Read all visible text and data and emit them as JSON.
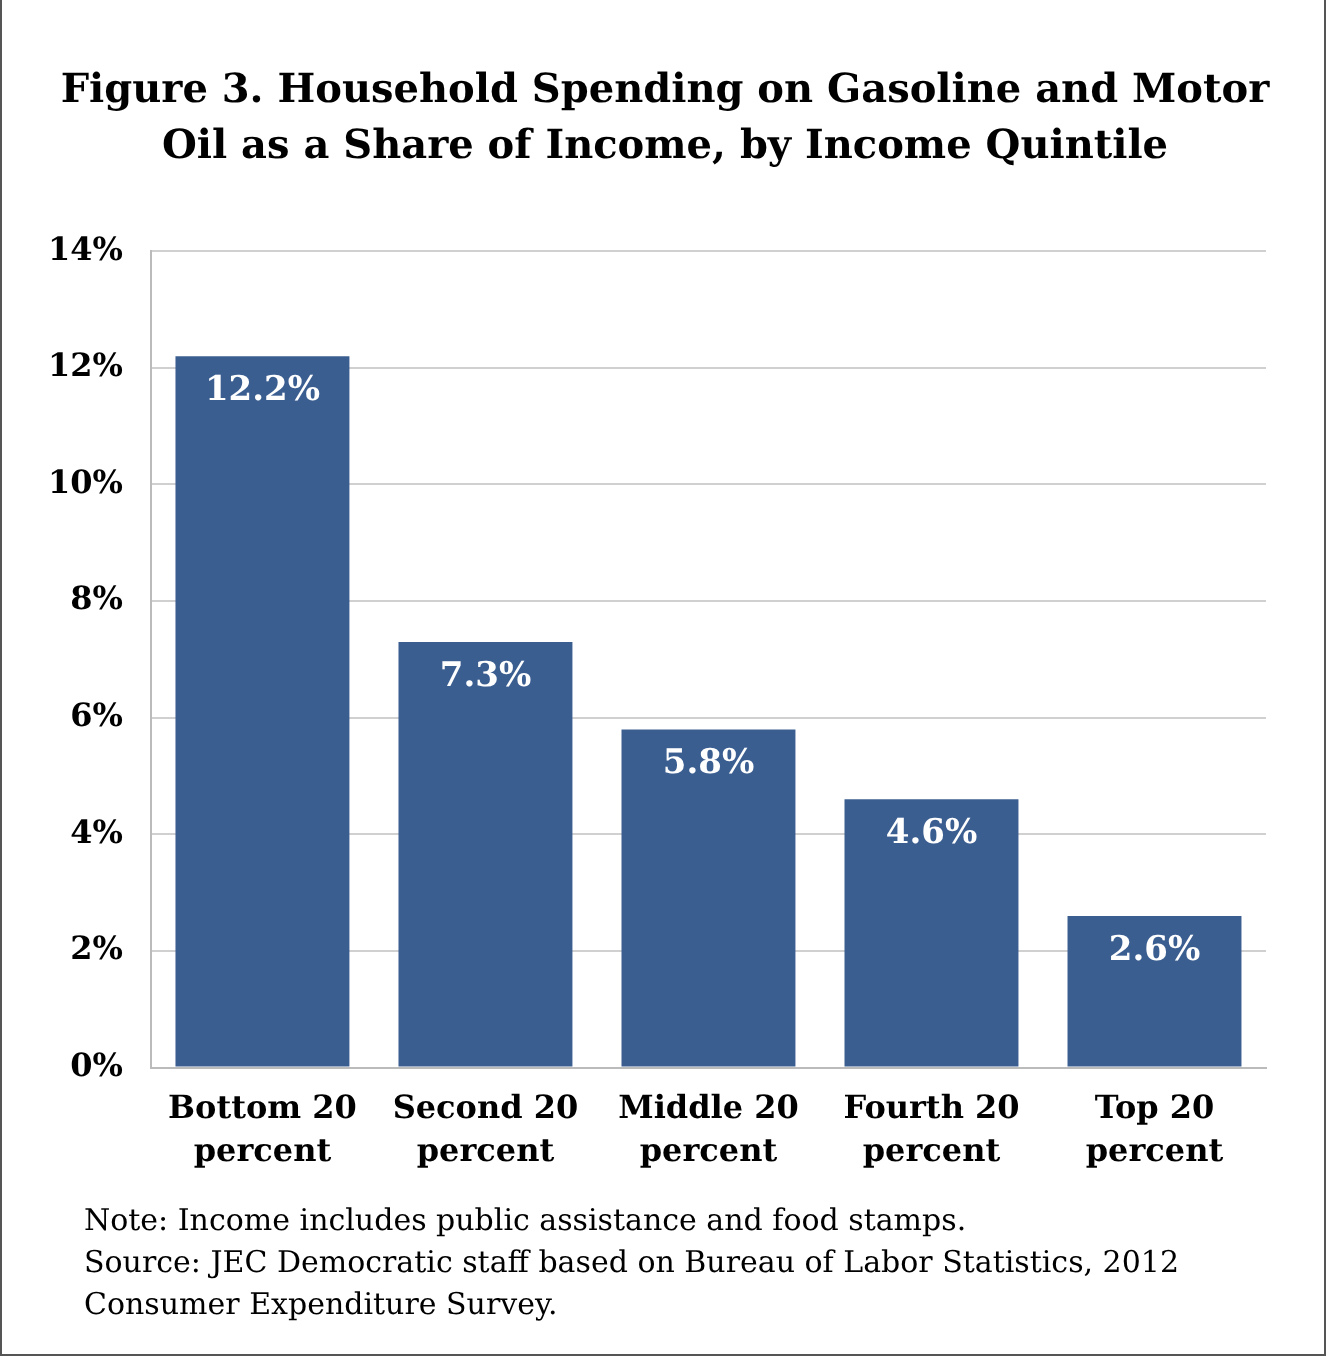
{
  "chart_data": {
    "type": "bar",
    "title": "Figure 3. Household Spending on Gasoline and Motor Oil as a Share of Income, by Income Quintile",
    "categories": [
      "Bottom 20 percent",
      "Second 20 percent",
      "Middle 20 percent",
      "Fourth 20 percent",
      "Top 20 percent"
    ],
    "values": [
      12.2,
      7.3,
      5.8,
      4.6,
      2.6
    ],
    "value_labels": [
      "12.2%",
      "7.3%",
      "5.8%",
      "4.6%",
      "2.6%"
    ],
    "color": "#3b5e91",
    "ylim": [
      0,
      14
    ],
    "yticks": [
      {
        "value": 0,
        "label": "0%"
      },
      {
        "value": 2,
        "label": "2%"
      },
      {
        "value": 4,
        "label": "4%"
      },
      {
        "value": 6,
        "label": "6%"
      },
      {
        "value": 8,
        "label": "8%"
      },
      {
        "value": 10,
        "label": "10%"
      },
      {
        "value": 12,
        "label": "12%"
      },
      {
        "value": 14,
        "label": "14%"
      }
    ],
    "grid": "y",
    "annotations": [
      "Note: Income includes public assistance and food stamps.",
      "Source: JEC Democratic staff based on Bureau of Labor Statistics, 2012 Consumer Expenditure Survey."
    ]
  }
}
